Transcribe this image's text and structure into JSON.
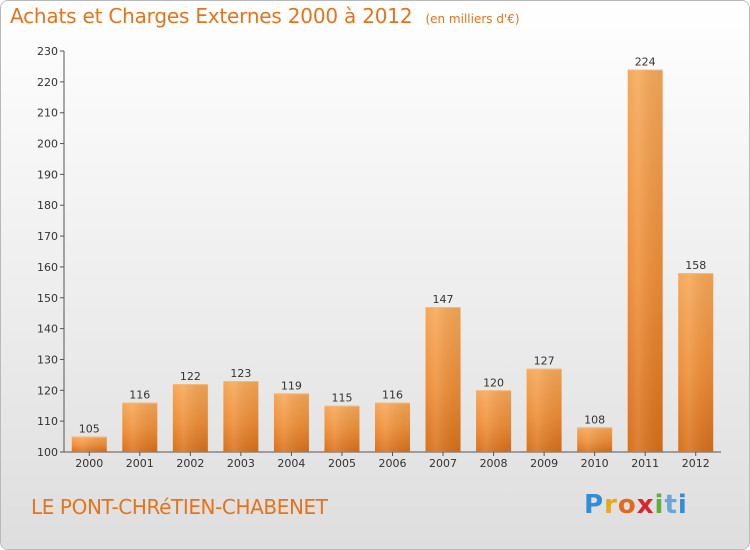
{
  "title": "Achats et Charges Externes 2000 à 2012",
  "subtitle": "(en milliers d'€)",
  "commune": "LE PONT-CHRéTIEN-CHABENET",
  "logo": {
    "letters": [
      "P",
      "r",
      "o",
      "x",
      "i",
      "t",
      "i"
    ],
    "colors": [
      "#2f8fd6",
      "#e8a81a",
      "#e06b1e",
      "#d8262b",
      "#5fae3e",
      "#6aa7d8",
      "#2f8fd6"
    ]
  },
  "chart_data": {
    "type": "bar",
    "title": "Achats et Charges Externes 2000 à 2012",
    "subtitle": "(en milliers d'€)",
    "categories": [
      "2000",
      "2001",
      "2002",
      "2003",
      "2004",
      "2005",
      "2006",
      "2007",
      "2008",
      "2009",
      "2010",
      "2011",
      "2012"
    ],
    "values": [
      105,
      116,
      122,
      123,
      119,
      115,
      116,
      147,
      120,
      127,
      108,
      224,
      158
    ],
    "ylim": [
      100,
      230
    ],
    "yticks": [
      100,
      110,
      120,
      130,
      140,
      150,
      160,
      170,
      180,
      190,
      200,
      210,
      220,
      230
    ],
    "grid": false,
    "bar_color": "#f0943a"
  }
}
